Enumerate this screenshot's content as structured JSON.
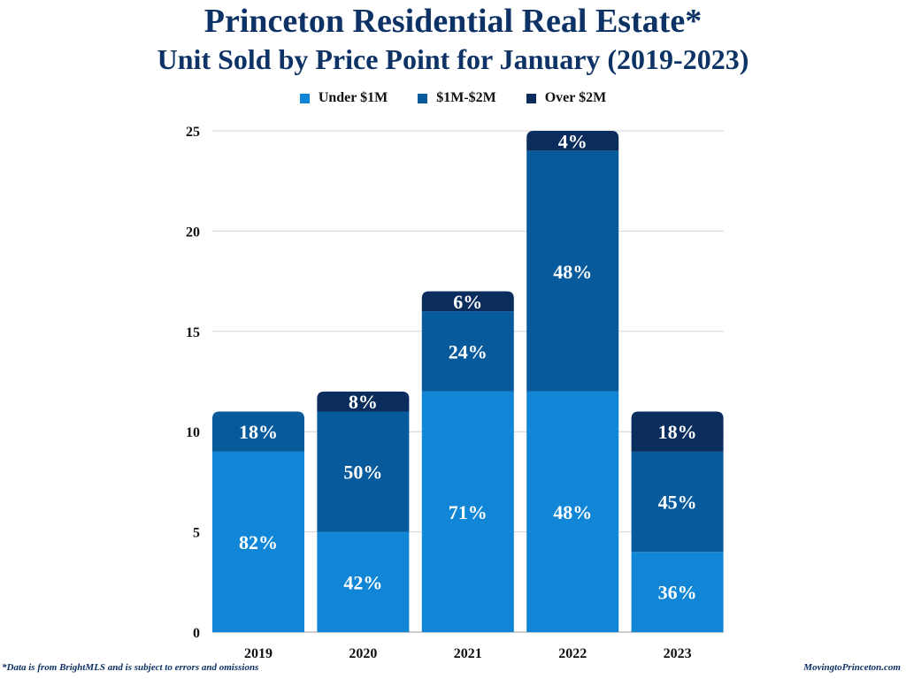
{
  "chart_data": {
    "type": "bar",
    "stacked": true,
    "title": "Princeton Residential Real Estate*",
    "subtitle": "Unit Sold by Price Point for January (2019-2023)",
    "xlabel": "",
    "ylabel": "",
    "ylim": [
      0,
      25
    ],
    "yticks": [
      0,
      5,
      10,
      15,
      20,
      25
    ],
    "grid": true,
    "legend_position": "top",
    "categories": [
      "2019",
      "2020",
      "2021",
      "2022",
      "2023"
    ],
    "series": [
      {
        "name": "Under $1M",
        "color": "#1185d6",
        "values": [
          9,
          5,
          12,
          12,
          4
        ],
        "labels": [
          "82%",
          "42%",
          "71%",
          "48%",
          "36%"
        ]
      },
      {
        "name": "$1M-$2M",
        "color": "#075a9c",
        "values": [
          2,
          6,
          4,
          12,
          5
        ],
        "labels": [
          "18%",
          "50%",
          "24%",
          "48%",
          "45%"
        ]
      },
      {
        "name": "Over $2M",
        "color": "#0a2d5e",
        "values": [
          0,
          1,
          1,
          1,
          2
        ],
        "labels": [
          "",
          "8%",
          "6%",
          "4%",
          "18%"
        ]
      }
    ]
  },
  "footer": {
    "note": "*Data is from BrightMLS and is subject to errors and omissions",
    "source": "MovingtoPrinceton.com"
  }
}
